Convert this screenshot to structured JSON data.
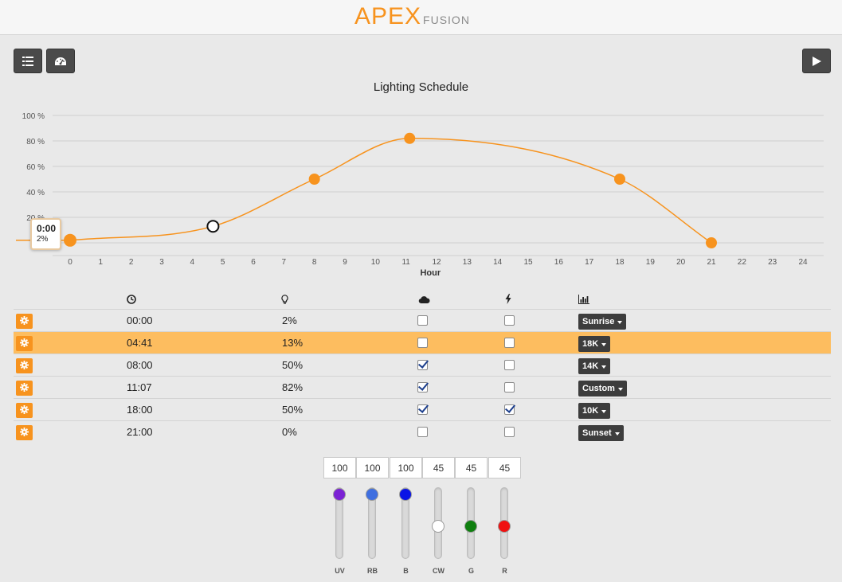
{
  "header": {
    "logo_main": "APEX",
    "logo_sub": "FUSION"
  },
  "toolbar": {
    "list_icon": "list-icon",
    "dashboard_icon": "dashboard-icon",
    "play_icon": "play-icon"
  },
  "chart_data": {
    "type": "line",
    "title": "Lighting Schedule",
    "xlabel": "Hour",
    "ylabel": "",
    "x_ticks": [
      "0",
      "1",
      "2",
      "3",
      "4",
      "5",
      "6",
      "7",
      "8",
      "9",
      "10",
      "11",
      "12",
      "13",
      "14",
      "15",
      "16",
      "17",
      "18",
      "19",
      "20",
      "21",
      "22",
      "23",
      "24"
    ],
    "y_ticks": [
      "100 %",
      "80 %",
      "60 %",
      "40 %",
      "20 %"
    ],
    "xlim": [
      0,
      24
    ],
    "ylim": [
      0,
      100
    ],
    "grid": true,
    "points": [
      {
        "x": 0,
        "y": 2
      },
      {
        "x": 4.68,
        "y": 13
      },
      {
        "x": 8,
        "y": 50
      },
      {
        "x": 11.12,
        "y": 82
      },
      {
        "x": 18,
        "y": 50
      },
      {
        "x": 21,
        "y": 0
      }
    ],
    "selected_index": 1,
    "color": "#f7931e"
  },
  "tooltip": {
    "time": "0:00",
    "value": "2%"
  },
  "table": {
    "header_icons": [
      "clock-icon",
      "bulb-icon",
      "cloud-icon",
      "lightning-icon",
      "bars-icon"
    ],
    "rows": [
      {
        "time": "00:00",
        "intensity": "2%",
        "cloud": false,
        "lightning": false,
        "profile": "Sunrise",
        "selected": false
      },
      {
        "time": "04:41",
        "intensity": "13%",
        "cloud": false,
        "lightning": false,
        "profile": "18K",
        "selected": true
      },
      {
        "time": "08:00",
        "intensity": "50%",
        "cloud": true,
        "lightning": false,
        "profile": "14K",
        "selected": false
      },
      {
        "time": "11:07",
        "intensity": "82%",
        "cloud": true,
        "lightning": false,
        "profile": "Custom",
        "selected": false
      },
      {
        "time": "18:00",
        "intensity": "50%",
        "cloud": true,
        "lightning": true,
        "profile": "10K",
        "selected": false
      },
      {
        "time": "21:00",
        "intensity": "0%",
        "cloud": false,
        "lightning": false,
        "profile": "Sunset",
        "selected": false
      }
    ]
  },
  "channels": [
    {
      "label": "UV",
      "value": "100",
      "level": 1.0,
      "color": "#7b22d4"
    },
    {
      "label": "RB",
      "value": "100",
      "level": 1.0,
      "color": "#3f6fe0"
    },
    {
      "label": "B",
      "value": "100",
      "level": 1.0,
      "color": "#0a14e6"
    },
    {
      "label": "CW",
      "value": "45",
      "level": 0.45,
      "color": "#ffffff"
    },
    {
      "label": "G",
      "value": "45",
      "level": 0.45,
      "color": "#0f7f0f"
    },
    {
      "label": "R",
      "value": "45",
      "level": 0.45,
      "color": "#f01010"
    }
  ]
}
